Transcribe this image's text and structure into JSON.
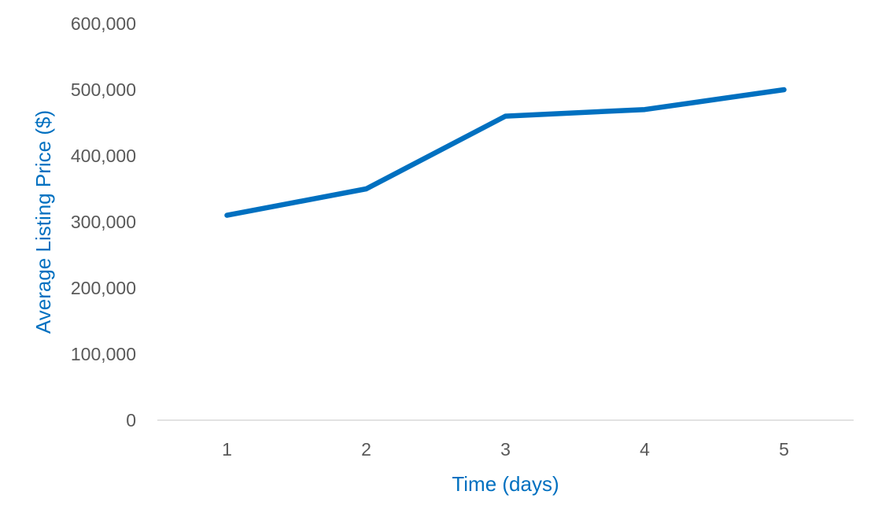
{
  "chart_data": {
    "type": "line",
    "title": "",
    "xlabel": "Time (days)",
    "ylabel": "Average Listing Price ($)",
    "categories": [
      "1",
      "2",
      "3",
      "4",
      "5"
    ],
    "series": [
      {
        "values": [
          310000,
          350000,
          460000,
          470000,
          500000
        ],
        "color": "#0070C0"
      }
    ],
    "ylim": [
      0,
      600000
    ],
    "yticks": [
      0,
      100000,
      200000,
      300000,
      400000,
      500000,
      600000
    ],
    "ytick_labels": [
      "0",
      "100,000",
      "200,000",
      "300,000",
      "400,000",
      "500,000",
      "600,000"
    ],
    "grid": false,
    "legend": "none",
    "colors": {
      "line": "#0070C0",
      "axis_title": "#0070C0",
      "tick_label": "#595959",
      "axis_line": "#D9D9D9"
    }
  }
}
